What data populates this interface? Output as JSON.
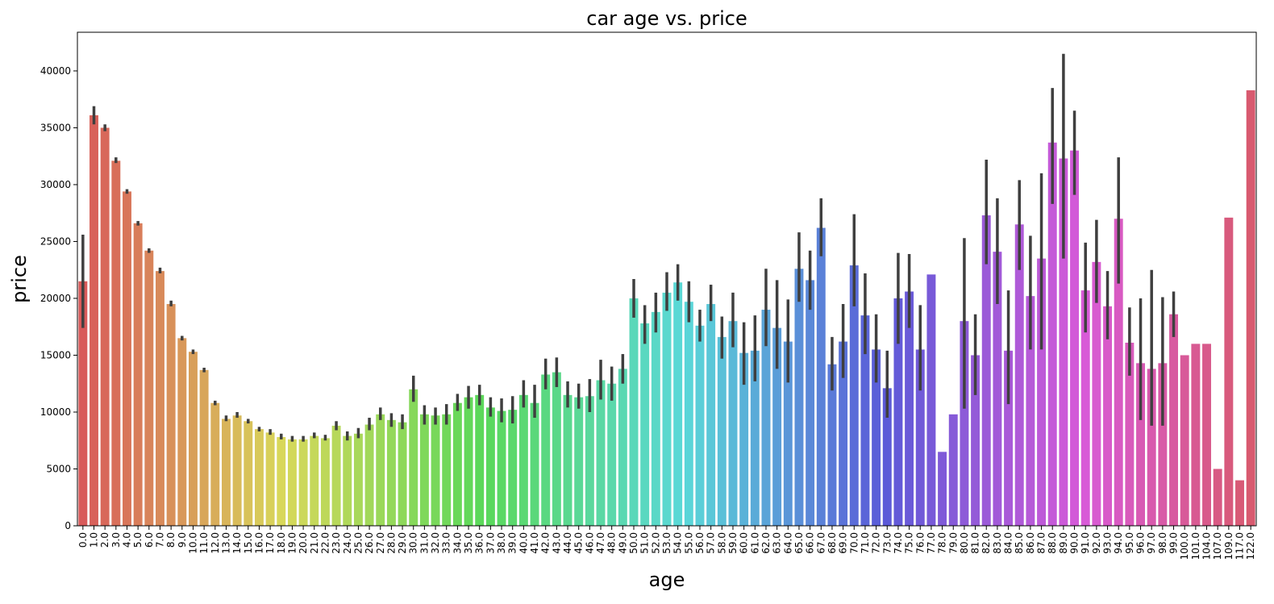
{
  "chart_data": {
    "type": "bar",
    "title": "car age vs. price",
    "xlabel": "age",
    "ylabel": "price",
    "ylim": [
      0,
      43400
    ],
    "yticks": [
      0,
      5000,
      10000,
      15000,
      20000,
      25000,
      30000,
      35000,
      40000
    ],
    "grid": false,
    "legend": "none",
    "error_bar_color": "#3f3f3f",
    "palette_hue_start": 0,
    "palette_hue_end": 350,
    "categories": [
      "0.0",
      "1.0",
      "2.0",
      "3.0",
      "4.0",
      "5.0",
      "6.0",
      "7.0",
      "8.0",
      "9.0",
      "10.0",
      "11.0",
      "12.0",
      "13.0",
      "14.0",
      "15.0",
      "16.0",
      "17.0",
      "18.0",
      "19.0",
      "20.0",
      "21.0",
      "22.0",
      "23.0",
      "24.0",
      "25.0",
      "26.0",
      "27.0",
      "28.0",
      "29.0",
      "30.0",
      "31.0",
      "32.0",
      "33.0",
      "34.0",
      "35.0",
      "36.0",
      "37.0",
      "38.0",
      "39.0",
      "40.0",
      "41.0",
      "42.0",
      "43.0",
      "44.0",
      "45.0",
      "46.0",
      "47.0",
      "48.0",
      "49.0",
      "50.0",
      "51.0",
      "52.0",
      "53.0",
      "54.0",
      "55.0",
      "56.0",
      "57.0",
      "58.0",
      "59.0",
      "60.0",
      "61.0",
      "62.0",
      "63.0",
      "64.0",
      "65.0",
      "66.0",
      "67.0",
      "68.0",
      "69.0",
      "70.0",
      "71.0",
      "72.0",
      "73.0",
      "74.0",
      "75.0",
      "76.0",
      "77.0",
      "78.0",
      "79.0",
      "80.0",
      "81.0",
      "82.0",
      "83.0",
      "84.0",
      "85.0",
      "86.0",
      "87.0",
      "88.0",
      "89.0",
      "90.0",
      "91.0",
      "92.0",
      "93.0",
      "94.0",
      "95.0",
      "96.0",
      "97.0",
      "98.0",
      "99.0",
      "100.0",
      "101.0",
      "104.0",
      "107.0",
      "109.0",
      "117.0",
      "122.0"
    ],
    "values": [
      21500,
      36100,
      35000,
      32100,
      29400,
      26600,
      24200,
      22400,
      19500,
      16500,
      15300,
      13700,
      10800,
      9400,
      9700,
      9200,
      8500,
      8200,
      7800,
      7600,
      7600,
      7900,
      7700,
      8800,
      7900,
      8100,
      8900,
      9800,
      9300,
      9100,
      12000,
      9800,
      9700,
      9800,
      10800,
      11300,
      11500,
      10400,
      10100,
      10200,
      11500,
      10800,
      13300,
      13500,
      11500,
      11300,
      11400,
      12800,
      12500,
      13800,
      20000,
      17800,
      18800,
      20500,
      21400,
      19700,
      17600,
      19500,
      16600,
      18000,
      15200,
      15400,
      19000,
      17400,
      16200,
      22600,
      21600,
      26200,
      14200,
      16200,
      22900,
      18500,
      15500,
      12100,
      20000,
      20600,
      15500,
      22100,
      6500,
      9800,
      18000,
      15000,
      27300,
      24100,
      15400,
      26500,
      20200,
      23500,
      33700,
      32300,
      33000,
      20700,
      23200,
      19300,
      27000,
      16100,
      14300,
      13800,
      14300,
      18600,
      15000,
      16000,
      16000,
      5000,
      27100,
      4000,
      38300
    ],
    "ci_low": [
      17400,
      35300,
      34700,
      31900,
      29200,
      26400,
      24000,
      22200,
      19300,
      16300,
      15100,
      13500,
      10600,
      9200,
      9500,
      9000,
      8300,
      8000,
      7600,
      7400,
      7400,
      7700,
      7500,
      8400,
      7500,
      7700,
      8400,
      9300,
      8700,
      8500,
      10900,
      8900,
      8900,
      8900,
      10100,
      10300,
      10600,
      9600,
      9100,
      9000,
      10400,
      9500,
      12000,
      12200,
      10400,
      10300,
      10000,
      11100,
      11000,
      12500,
      18300,
      16000,
      17000,
      18900,
      19800,
      17900,
      16200,
      18000,
      14700,
      15700,
      12400,
      12700,
      15800,
      13800,
      12600,
      19700,
      19000,
      23700,
      11900,
      13000,
      19300,
      15100,
      12600,
      9500,
      16000,
      17400,
      11900,
      22100,
      6500,
      9800,
      10300,
      11500,
      23000,
      19500,
      10700,
      22500,
      15500,
      15500,
      28300,
      23500,
      29100,
      17000,
      19600,
      16400,
      21300,
      13200,
      9300,
      8800,
      8800,
      16600,
      15000,
      16000,
      16000,
      5000,
      27100,
      4000,
      38300
    ],
    "ci_high": [
      25600,
      36900,
      35300,
      32400,
      29600,
      26800,
      24400,
      22700,
      19800,
      16700,
      15500,
      13900,
      11000,
      9700,
      10000,
      9400,
      8700,
      8500,
      8100,
      7900,
      7900,
      8200,
      8000,
      9200,
      8300,
      8600,
      9500,
      10400,
      9900,
      9800,
      13200,
      10600,
      10400,
      10700,
      11600,
      12300,
      12400,
      11300,
      11200,
      11400,
      12800,
      12400,
      14700,
      14800,
      12700,
      12500,
      12900,
      14600,
      14000,
      15100,
      21700,
      19400,
      20500,
      22300,
      23000,
      21500,
      19000,
      21200,
      18400,
      20500,
      17900,
      18500,
      22600,
      21600,
      19900,
      25800,
      24200,
      28800,
      16600,
      19500,
      27400,
      22200,
      18600,
      15400,
      24000,
      23900,
      19400,
      22100,
      6500,
      9800,
      25300,
      18600,
      32200,
      28800,
      20700,
      30400,
      25500,
      31000,
      38500,
      41500,
      36500,
      24900,
      26900,
      22400,
      32400,
      19200,
      20000,
      22500,
      20100,
      20600,
      15000,
      16000,
      16000,
      5000,
      27100,
      4000,
      38300
    ]
  }
}
